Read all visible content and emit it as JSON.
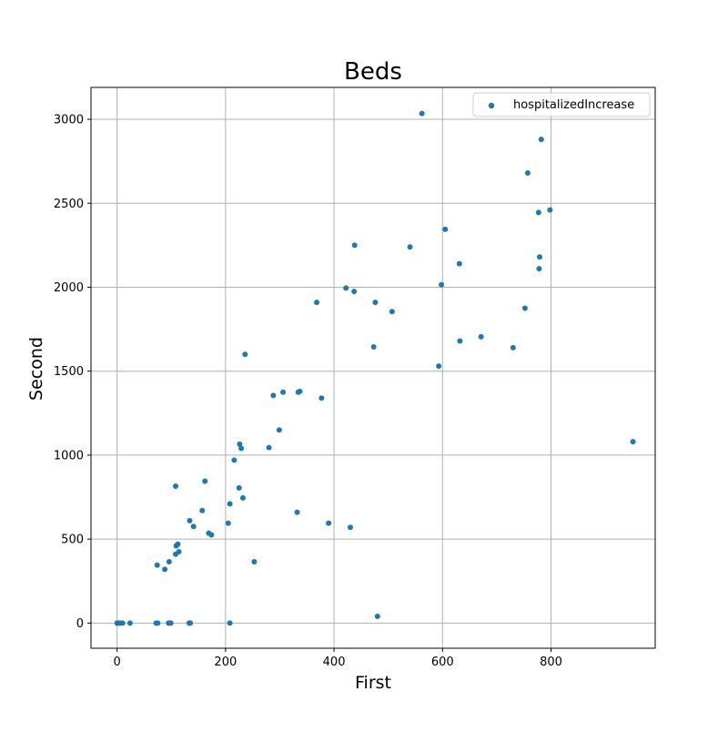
{
  "chart_data": {
    "type": "scatter",
    "title": "Beds",
    "xlabel": "First",
    "ylabel": "Second",
    "xlim": [
      -48,
      992
    ],
    "ylim": [
      -150,
      3190
    ],
    "xticks": [
      0,
      200,
      400,
      600,
      800
    ],
    "xtick_labels": [
      "0",
      "200",
      "400",
      "600",
      "800"
    ],
    "yticks": [
      0,
      500,
      1000,
      1500,
      2000,
      2500,
      3000
    ],
    "ytick_labels": [
      "0",
      "500",
      "1000",
      "1500",
      "2000",
      "2500",
      "3000"
    ],
    "grid": true,
    "legend_position": "top-right",
    "colors": {
      "series": "#1f77b4",
      "grid": "#b0b0b0",
      "axes": "#000000"
    },
    "series": [
      {
        "name": "hospitalizedIncrease",
        "points": [
          [
            0,
            0
          ],
          [
            2,
            0
          ],
          [
            5,
            0
          ],
          [
            10,
            0
          ],
          [
            24,
            0
          ],
          [
            72,
            0
          ],
          [
            75,
            0
          ],
          [
            95,
            0
          ],
          [
            99,
            0
          ],
          [
            133,
            0
          ],
          [
            135,
            0
          ],
          [
            208,
            0
          ],
          [
            480,
            40
          ],
          [
            74,
            345
          ],
          [
            88,
            320
          ],
          [
            96,
            365
          ],
          [
            108,
            410
          ],
          [
            109,
            460
          ],
          [
            112,
            470
          ],
          [
            114,
            425
          ],
          [
            108,
            815
          ],
          [
            134,
            610
          ],
          [
            141,
            575
          ],
          [
            157,
            670
          ],
          [
            162,
            845
          ],
          [
            169,
            535
          ],
          [
            174,
            525
          ],
          [
            205,
            595
          ],
          [
            208,
            710
          ],
          [
            216,
            970
          ],
          [
            225,
            805
          ],
          [
            226,
            1065
          ],
          [
            229,
            1040
          ],
          [
            232,
            745
          ],
          [
            236,
            1600
          ],
          [
            253,
            365
          ],
          [
            280,
            1045
          ],
          [
            288,
            1355
          ],
          [
            299,
            1150
          ],
          [
            306,
            1375
          ],
          [
            332,
            660
          ],
          [
            334,
            1375
          ],
          [
            337,
            1380
          ],
          [
            377,
            1340
          ],
          [
            368,
            1910
          ],
          [
            390,
            595
          ],
          [
            422,
            1995
          ],
          [
            430,
            570
          ],
          [
            437,
            1975
          ],
          [
            438,
            2250
          ],
          [
            473,
            1645
          ],
          [
            476,
            1910
          ],
          [
            507,
            1855
          ],
          [
            540,
            2240
          ],
          [
            562,
            3035
          ],
          [
            593,
            1530
          ],
          [
            598,
            2015
          ],
          [
            605,
            2345
          ],
          [
            631,
            2140
          ],
          [
            632,
            1680
          ],
          [
            671,
            1705
          ],
          [
            730,
            1640
          ],
          [
            752,
            1875
          ],
          [
            757,
            2680
          ],
          [
            777,
            2445
          ],
          [
            778,
            2110
          ],
          [
            779,
            2180
          ],
          [
            782,
            2880
          ],
          [
            798,
            2460
          ],
          [
            951,
            1080
          ]
        ]
      }
    ]
  }
}
